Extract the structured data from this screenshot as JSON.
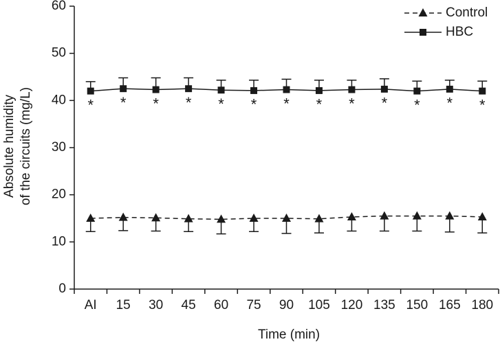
{
  "chart_data": {
    "type": "line",
    "xlabel": "Time (min)",
    "ylabel": [
      "Absolute humidity",
      "of the circuits (mg/L)"
    ],
    "categories": [
      "AI",
      "15",
      "30",
      "45",
      "60",
      "75",
      "90",
      "105",
      "120",
      "135",
      "150",
      "165",
      "180"
    ],
    "ylim": [
      0,
      60
    ],
    "yticks": [
      0,
      10,
      20,
      30,
      40,
      50,
      60
    ],
    "grid": false,
    "legend": "top-right",
    "series": [
      {
        "name": "Control",
        "color": "#1a1a1a",
        "dash": true,
        "marker": "triangle",
        "error_direction": "down",
        "values": [
          15.0,
          15.2,
          15.1,
          14.9,
          14.8,
          15.0,
          15.0,
          14.9,
          15.3,
          15.5,
          15.5,
          15.5,
          15.3
        ],
        "errors": [
          2.8,
          2.8,
          2.8,
          2.7,
          3.1,
          2.8,
          3.2,
          3.0,
          3.0,
          3.2,
          3.2,
          3.4,
          3.4
        ]
      },
      {
        "name": "HBC",
        "color": "#1a1a1a",
        "dash": false,
        "marker": "square",
        "error_direction": "up",
        "values": [
          42.0,
          42.5,
          42.3,
          42.5,
          42.2,
          42.1,
          42.3,
          42.1,
          42.3,
          42.4,
          42.0,
          42.4,
          42.0
        ],
        "errors": [
          2.0,
          2.3,
          2.5,
          2.3,
          2.1,
          2.2,
          2.2,
          2.2,
          2.0,
          2.2,
          2.1,
          1.9,
          2.1
        ],
        "significance_labels": [
          "*",
          "*",
          "*",
          "*",
          "*",
          "*",
          "*",
          "*",
          "*",
          "*",
          "*",
          "*",
          "*"
        ]
      }
    ]
  }
}
